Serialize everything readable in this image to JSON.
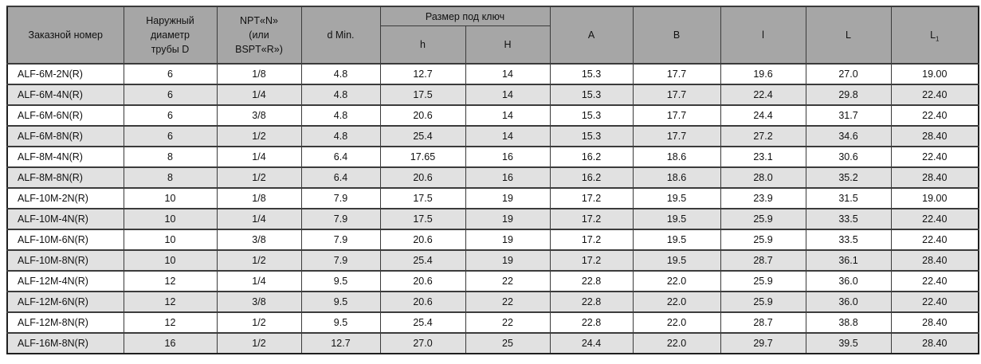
{
  "table": {
    "colors": {
      "header_bg": "#a6a6a6",
      "alt_row_bg": "#e1e1e1",
      "border": "#3b3b3b"
    },
    "headers": {
      "order": "Заказной номер",
      "outer_diameter": "Наружный\nдиаметр\nтрубы D",
      "npt": "NPT«N»\n(или\nBSPT«R»)",
      "d_min": "d Min.",
      "wrench_group": "Размер под ключ",
      "wrench_h": "h",
      "wrench_H": "H",
      "a": "A",
      "b": "B",
      "l": "l",
      "L": "L",
      "L1_base": "L",
      "L1_sub": "1"
    },
    "rows": [
      [
        "ALF-6M-2N(R)",
        "6",
        "1/8",
        "4.8",
        "12.7",
        "14",
        "15.3",
        "17.7",
        "19.6",
        "27.0",
        "19.00"
      ],
      [
        "ALF-6M-4N(R)",
        "6",
        "1/4",
        "4.8",
        "17.5",
        "14",
        "15.3",
        "17.7",
        "22.4",
        "29.8",
        "22.40"
      ],
      [
        "ALF-6M-6N(R)",
        "6",
        "3/8",
        "4.8",
        "20.6",
        "14",
        "15.3",
        "17.7",
        "24.4",
        "31.7",
        "22.40"
      ],
      [
        "ALF-6M-8N(R)",
        "6",
        "1/2",
        "4.8",
        "25.4",
        "14",
        "15.3",
        "17.7",
        "27.2",
        "34.6",
        "28.40"
      ],
      [
        "ALF-8M-4N(R)",
        "8",
        "1/4",
        "6.4",
        "17.65",
        "16",
        "16.2",
        "18.6",
        "23.1",
        "30.6",
        "22.40"
      ],
      [
        "ALF-8M-8N(R)",
        "8",
        "1/2",
        "6.4",
        "20.6",
        "16",
        "16.2",
        "18.6",
        "28.0",
        "35.2",
        "28.40"
      ],
      [
        "ALF-10M-2N(R)",
        "10",
        "1/8",
        "7.9",
        "17.5",
        "19",
        "17.2",
        "19.5",
        "23.9",
        "31.5",
        "19.00"
      ],
      [
        "ALF-10M-4N(R)",
        "10",
        "1/4",
        "7.9",
        "17.5",
        "19",
        "17.2",
        "19.5",
        "25.9",
        "33.5",
        "22.40"
      ],
      [
        "ALF-10M-6N(R)",
        "10",
        "3/8",
        "7.9",
        "20.6",
        "19",
        "17.2",
        "19.5",
        "25.9",
        "33.5",
        "22.40"
      ],
      [
        "ALF-10M-8N(R)",
        "10",
        "1/2",
        "7.9",
        "25.4",
        "19",
        "17.2",
        "19.5",
        "28.7",
        "36.1",
        "28.40"
      ],
      [
        "ALF-12M-4N(R)",
        "12",
        "1/4",
        "9.5",
        "20.6",
        "22",
        "22.8",
        "22.0",
        "25.9",
        "36.0",
        "22.40"
      ],
      [
        "ALF-12M-6N(R)",
        "12",
        "3/8",
        "9.5",
        "20.6",
        "22",
        "22.8",
        "22.0",
        "25.9",
        "36.0",
        "22.40"
      ],
      [
        "ALF-12M-8N(R)",
        "12",
        "1/2",
        "9.5",
        "25.4",
        "22",
        "22.8",
        "22.0",
        "28.7",
        "38.8",
        "28.40"
      ],
      [
        "ALF-16M-8N(R)",
        "16",
        "1/2",
        "12.7",
        "27.0",
        "25",
        "24.4",
        "22.0",
        "29.7",
        "39.5",
        "28.40"
      ]
    ]
  }
}
